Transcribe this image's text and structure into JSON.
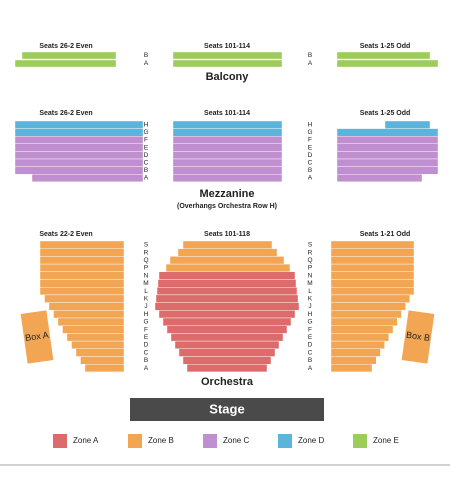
{
  "balcony": {
    "title": "Balcony",
    "sections": [
      "Seats 26-2 Even",
      "Seats 101-114",
      "Seats 1-25 Odd"
    ],
    "rows": [
      "B",
      "A"
    ]
  },
  "mezzanine": {
    "title": "Mezzanine",
    "subtitle": "(Overhangs Orchestra Row H)",
    "sections": [
      "Seats 26-2 Even",
      "Seats 101-114",
      "Seats 1-25 Odd"
    ],
    "rows": [
      "H",
      "G",
      "F",
      "E",
      "D",
      "C",
      "B",
      "A"
    ]
  },
  "orchestra": {
    "title": "Orchestra",
    "sections": [
      "Seats 22-2 Even",
      "Seats 101-118",
      "Seats 1-21 Odd"
    ],
    "rows": [
      "S",
      "R",
      "Q",
      "P",
      "N",
      "M",
      "L",
      "K",
      "J",
      "H",
      "G",
      "F",
      "E",
      "D",
      "C",
      "B",
      "A"
    ],
    "boxes": [
      "Box A",
      "Box B"
    ]
  },
  "stage": "Stage",
  "legend": [
    {
      "name": "Zone A",
      "color": "#dd6b6b"
    },
    {
      "name": "Zone B",
      "color": "#f2a654"
    },
    {
      "name": "Zone C",
      "color": "#c08fd0"
    },
    {
      "name": "Zone D",
      "color": "#5ab4dc"
    },
    {
      "name": "Zone E",
      "color": "#9ccc5a"
    }
  ]
}
